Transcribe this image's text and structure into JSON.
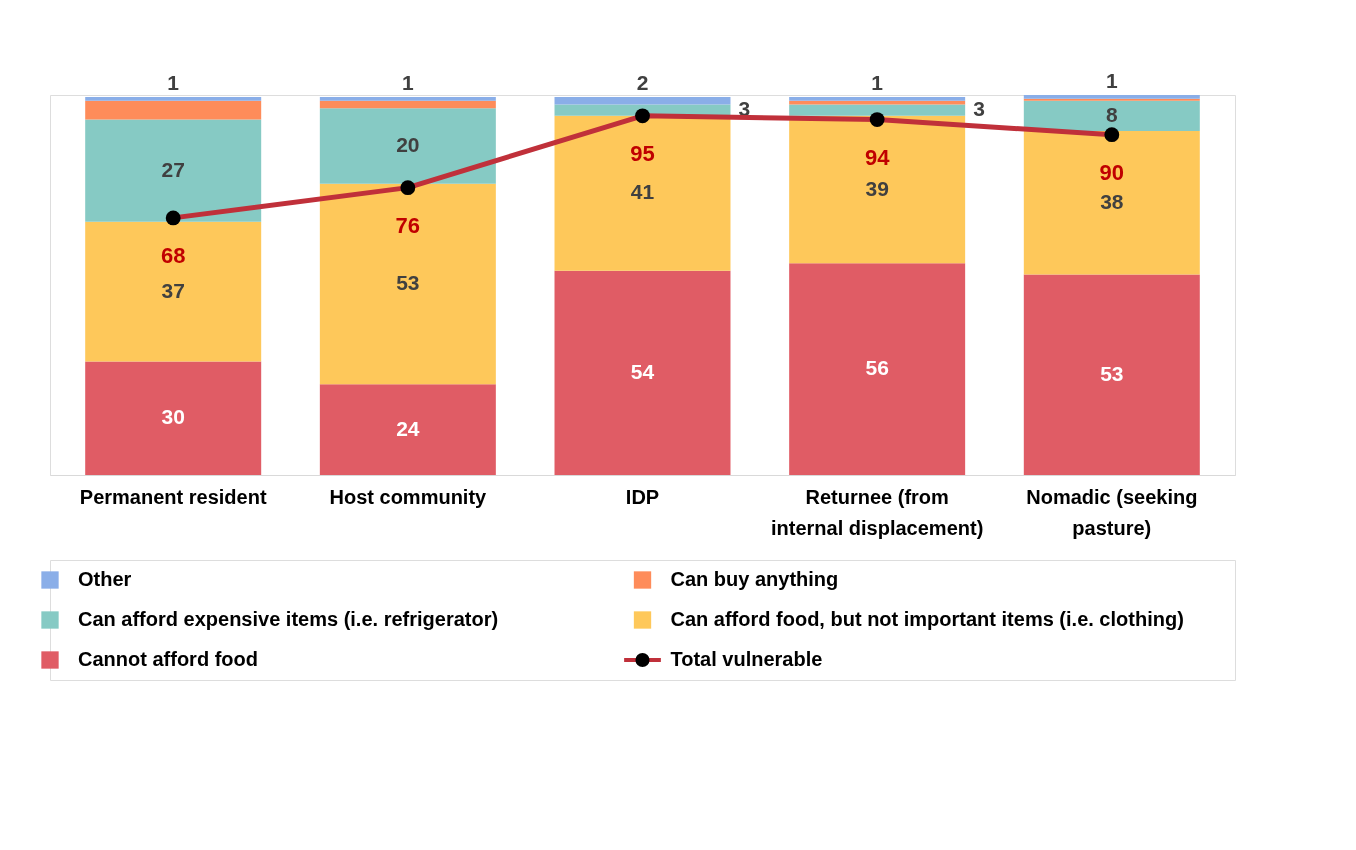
{
  "chart_data": {
    "type": "bar",
    "stacked": true,
    "categories": [
      "Permanent resident",
      "Host community",
      "IDP",
      "Returnee (from internal displacement)",
      "Nomadic (seeking pasture)"
    ],
    "ylim": [
      0,
      100.5
    ],
    "tick_labels": "x",
    "grid": false,
    "legend": "bottom",
    "series": [
      {
        "name": "Cannot afford food",
        "color": "#e05c65",
        "values": [
          30,
          24,
          54,
          56,
          53
        ],
        "value_labels": [
          "30",
          "24",
          "54",
          "56",
          "53"
        ]
      },
      {
        "name": "Can afford food, but not important items (i.e. clothing)",
        "color": "#fec85a",
        "values": [
          37,
          53,
          41,
          39,
          38
        ],
        "value_labels": [
          "37",
          "53",
          "41",
          "39",
          "38"
        ]
      },
      {
        "name": "Can afford expensive items (i.e. refrigerator)",
        "color": "#86cac4",
        "values": [
          27,
          20,
          3,
          3,
          8
        ],
        "value_labels": [
          "27",
          "20",
          "3",
          "3",
          "8"
        ]
      },
      {
        "name": "Can buy anything",
        "color": "#fe8c5a",
        "values": [
          5,
          2,
          0,
          1,
          0.5
        ],
        "value_labels": [
          null,
          null,
          null,
          null,
          null
        ]
      },
      {
        "name": "Other",
        "color": "#8aaee8",
        "values": [
          1,
          1,
          2,
          1,
          1
        ],
        "value_labels": [
          "1",
          "1",
          "2",
          "1",
          "1"
        ]
      },
      {
        "name": "Total vulnerable",
        "type": "line",
        "color": "#c0303a",
        "marker": "circle",
        "values": [
          68,
          76,
          95,
          94,
          90
        ],
        "value_labels": [
          "68",
          "76",
          "95",
          "94",
          "90"
        ]
      }
    ]
  }
}
